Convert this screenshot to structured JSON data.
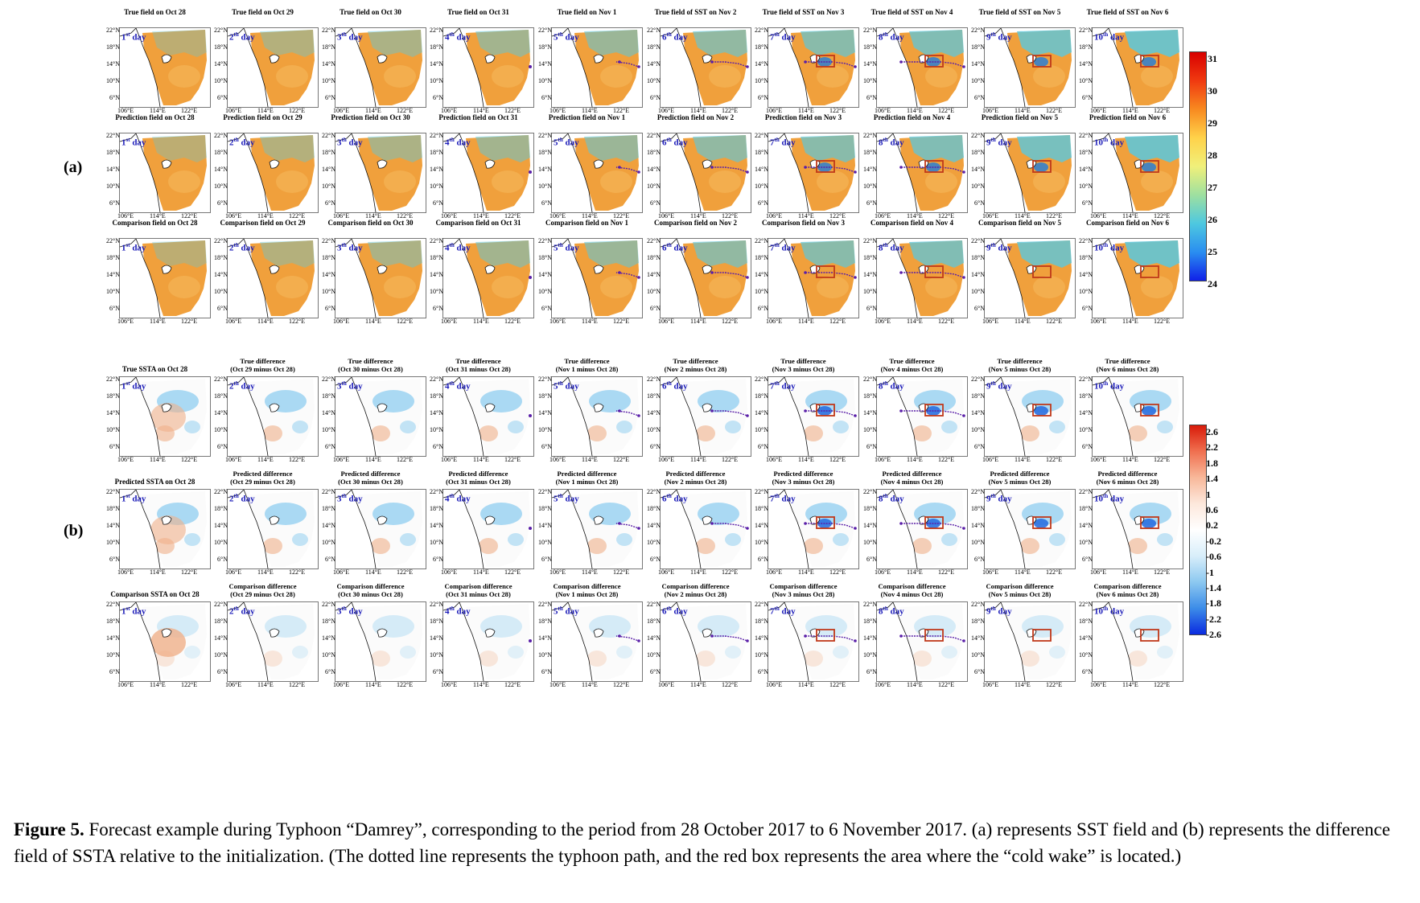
{
  "colors": {
    "warm": "#f0a03c",
    "warm2": "#f5b85a",
    "cool": "#5fc6d8",
    "pos": "#f0b08a",
    "neg": "#8fcdf0",
    "negstrong": "#2a6fe0",
    "box": "#c0391a",
    "track": "#5a1fa8"
  },
  "labels": {
    "a": "(a)",
    "b": "(b)"
  },
  "axis": {
    "lats": [
      "22°N",
      "18°N",
      "14°N",
      "10°N",
      "6°N"
    ],
    "lons": [
      "106°E",
      "114°E",
      "122°E"
    ]
  },
  "days": [
    {
      "n": "1",
      "sup": "st",
      "word": " day"
    },
    {
      "n": "2",
      "sup": "th",
      "word": " day"
    },
    {
      "n": "3",
      "sup": "th",
      "word": " day"
    },
    {
      "n": "4",
      "sup": "th",
      "word": " day"
    },
    {
      "n": "5",
      "sup": "th",
      "word": " day"
    },
    {
      "n": "6",
      "sup": "th",
      "word": " day"
    },
    {
      "n": "7",
      "sup": "th",
      "word": " day"
    },
    {
      "n": "8",
      "sup": "th",
      "word": " day"
    },
    {
      "n": "9",
      "sup": "th",
      "word": " day"
    },
    {
      "n": "10",
      "sup": "th",
      "word": " day"
    }
  ],
  "sst_rows": [
    {
      "titles": [
        "True field on Oct 28",
        "True field on Oct 29",
        "True field on Oct 30",
        "True field on Oct 31",
        "True field on Nov 1",
        "True field of SST on Nov 2",
        "True field of SST on Nov 3",
        "True field of SST on Nov 4",
        "True field of SST on Nov 5",
        "True field of SST on Nov 6"
      ]
    },
    {
      "titles": [
        "Prediction field on Oct 28",
        "Prediction field on Oct 29",
        "Prediction field on Oct 30",
        "Prediction field on Oct 31",
        "Prediction field on Nov 1",
        "Prediction field on Nov 2",
        "Prediction field on Nov 3",
        "Prediction field on Nov 4",
        "Prediction field on Nov 5",
        "Prediction field on Nov 6"
      ]
    },
    {
      "titles": [
        "Comparison field on Oct 28",
        "Comparison field on Oct 29",
        "Comparison field on Oct 30",
        "Comparison field on Oct 31",
        "Comparison field on Nov 1",
        "Comparison field on Nov 2",
        "Comparison field on Nov 3",
        "Comparison field on Nov 4",
        "Comparison field on Nov 5",
        "Comparison field on Nov 6"
      ]
    }
  ],
  "ssta_rows": [
    {
      "first": "True SSTA on Oct 28",
      "prefix": "True difference"
    },
    {
      "first": "Predicted SSTA on Oct 28",
      "prefix": "Predicted difference"
    },
    {
      "first": "Comparison SSTA on Oct 28",
      "prefix": "Comparison difference"
    }
  ],
  "diff_periods": [
    "(Oct 29 minus Oct 28)",
    "(Oct 30 minus Oct 28)",
    "(Oct 31 minus Oct 28)",
    "(Nov 1 minus Oct 28)",
    "(Nov 2 minus Oct 28)",
    "(Nov 3 minus Oct 28)",
    "(Nov 4 minus Oct 28)",
    "(Nov 5 minus Oct 28)",
    "(Nov 6 minus Oct 28)"
  ],
  "colorbar_sst": {
    "ticks": [
      "31",
      "30",
      "29",
      "28",
      "27",
      "26",
      "25",
      "24"
    ]
  },
  "colorbar_ssta": {
    "ticks": [
      "2.6",
      "2.2",
      "1.8",
      "1.4",
      "1",
      "0.6",
      "0.2",
      "-0.2",
      "-0.6",
      "-1",
      "-1.4",
      "-1.8",
      "-2.2",
      "-2.6"
    ]
  },
  "caption": {
    "label": "Figure 5.",
    "text": " Forecast example during Typhoon “Damrey”, corresponding to the period from 28 October 2017 to 6 November 2017. (a) represents SST field and (b) represents the difference field of SSTA relative to the initialization. (The dotted line represents the typhoon path, and the red box represents the area where the “cold wake” is located.)"
  }
}
